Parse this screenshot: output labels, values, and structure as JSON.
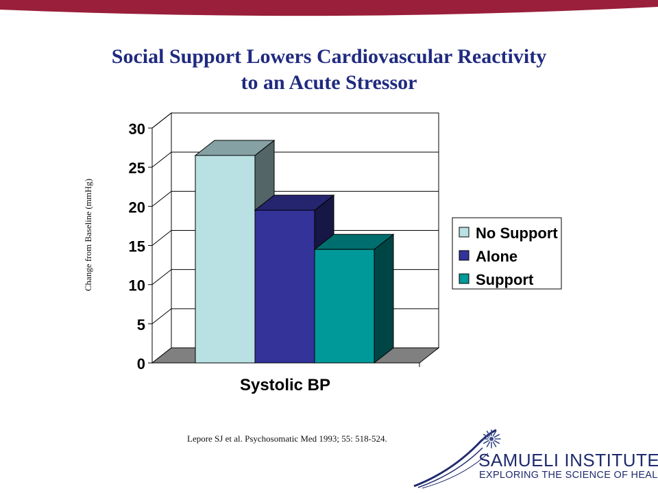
{
  "colors": {
    "top_band": "#9a1f3a",
    "title": "#1f2a80",
    "logo": "#1f2a6e"
  },
  "slide": {
    "title_line1": "Social Support Lowers Cardiovascular Reactivity",
    "title_line2": "to an Acute Stressor",
    "citation": "Lepore SJ et al. Psychosomatic Med 1993; 55: 518-524."
  },
  "logo": {
    "name": "SAMUELI INSTITUTE",
    "tagline": "EXPLORING THE SCIENCE OF HEALING",
    "icon": "starburst-icon"
  },
  "chart_data": {
    "type": "bar",
    "style": "3d-clustered-column",
    "categories": [
      "Systolic BP"
    ],
    "series": [
      {
        "name": "No Support",
        "values": [
          26.5
        ],
        "color": "#b9e0e3"
      },
      {
        "name": "Alone",
        "values": [
          19.5
        ],
        "color": "#33339a"
      },
      {
        "name": "Support",
        "values": [
          14.5
        ],
        "color": "#009999"
      }
    ],
    "ylabel": "Change from Baseline (mmHg)",
    "xlabel": "",
    "ylim": [
      0,
      30
    ],
    "yticks": [
      0,
      5,
      10,
      15,
      20,
      25,
      30
    ],
    "grid": true,
    "legend": "right"
  }
}
